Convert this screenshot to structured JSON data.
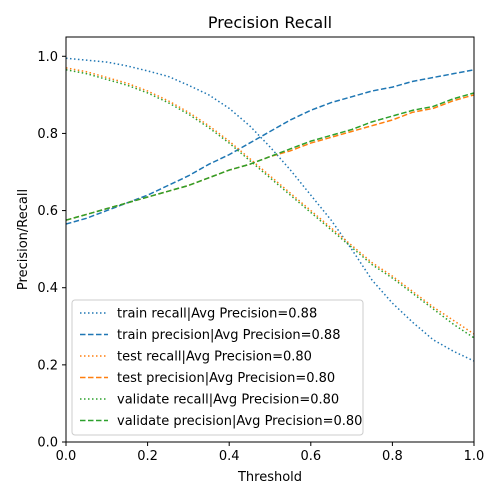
{
  "chart_data": {
    "type": "line",
    "title": "Precision Recall",
    "xlabel": "Threshold",
    "ylabel": "Precision/Recall",
    "xlim": [
      0.0,
      1.0
    ],
    "ylim": [
      0.0,
      1.05
    ],
    "xticks": [
      "0.0",
      "0.2",
      "0.4",
      "0.6",
      "0.8",
      "1.0"
    ],
    "yticks": [
      "0.0",
      "0.2",
      "0.4",
      "0.6",
      "0.8",
      "1.0"
    ],
    "grid": false,
    "legend_position": "lower-left",
    "x": [
      0.0,
      0.05,
      0.1,
      0.15,
      0.2,
      0.25,
      0.3,
      0.35,
      0.4,
      0.45,
      0.5,
      0.55,
      0.6,
      0.65,
      0.7,
      0.75,
      0.8,
      0.85,
      0.9,
      0.95,
      1.0
    ],
    "series": [
      {
        "name": "train recall|Avg Precision=0.88",
        "color": "#1f77b4",
        "style": "dotted",
        "values": [
          0.995,
          0.99,
          0.985,
          0.975,
          0.962,
          0.948,
          0.925,
          0.9,
          0.865,
          0.82,
          0.765,
          0.705,
          0.64,
          0.575,
          0.5,
          0.42,
          0.36,
          0.31,
          0.265,
          0.235,
          0.21
        ]
      },
      {
        "name": "train precision|Avg Precision=0.88",
        "color": "#1f77b4",
        "style": "dashed",
        "values": [
          0.565,
          0.58,
          0.6,
          0.62,
          0.64,
          0.665,
          0.69,
          0.72,
          0.745,
          0.775,
          0.805,
          0.835,
          0.86,
          0.88,
          0.895,
          0.91,
          0.92,
          0.935,
          0.945,
          0.955,
          0.965
        ]
      },
      {
        "name": "test recall|Avg Precision=0.80",
        "color": "#ff7f0e",
        "style": "dotted",
        "values": [
          0.97,
          0.96,
          0.945,
          0.93,
          0.91,
          0.885,
          0.855,
          0.82,
          0.78,
          0.735,
          0.69,
          0.645,
          0.6,
          0.555,
          0.51,
          0.465,
          0.43,
          0.39,
          0.35,
          0.315,
          0.28
        ]
      },
      {
        "name": "test precision|Avg Precision=0.80",
        "color": "#ff7f0e",
        "style": "dashed",
        "values": [
          0.575,
          0.59,
          0.605,
          0.62,
          0.635,
          0.65,
          0.665,
          0.685,
          0.705,
          0.72,
          0.74,
          0.755,
          0.775,
          0.79,
          0.805,
          0.82,
          0.835,
          0.855,
          0.865,
          0.885,
          0.9
        ]
      },
      {
        "name": "validate recall|Avg Precision=0.80",
        "color": "#2ca02c",
        "style": "dotted",
        "values": [
          0.965,
          0.955,
          0.94,
          0.925,
          0.905,
          0.88,
          0.85,
          0.815,
          0.775,
          0.73,
          0.685,
          0.64,
          0.595,
          0.55,
          0.505,
          0.46,
          0.425,
          0.385,
          0.345,
          0.305,
          0.27
        ]
      },
      {
        "name": "validate precision|Avg Precision=0.80",
        "color": "#2ca02c",
        "style": "dashed",
        "values": [
          0.575,
          0.59,
          0.605,
          0.62,
          0.635,
          0.65,
          0.665,
          0.685,
          0.705,
          0.72,
          0.74,
          0.76,
          0.78,
          0.795,
          0.81,
          0.83,
          0.845,
          0.86,
          0.87,
          0.89,
          0.905
        ]
      }
    ]
  }
}
